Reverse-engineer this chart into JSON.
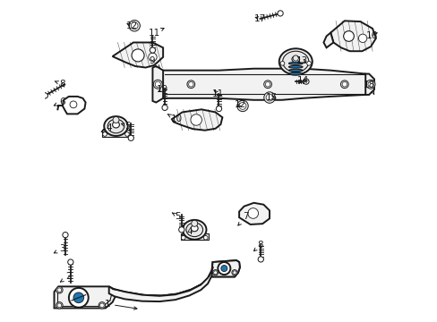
{
  "bg_color": "#ffffff",
  "line_color": "#1a1a1a",
  "fig_width": 4.89,
  "fig_height": 3.6,
  "dpi": 100,
  "lw_main": 1.4,
  "lw_inner": 0.8,
  "lw_thin": 0.6,
  "gray_fill": "#e8e8e8",
  "light_fill": "#f2f2f2",
  "white_fill": "#ffffff",
  "label_fontsize": 7.5
}
